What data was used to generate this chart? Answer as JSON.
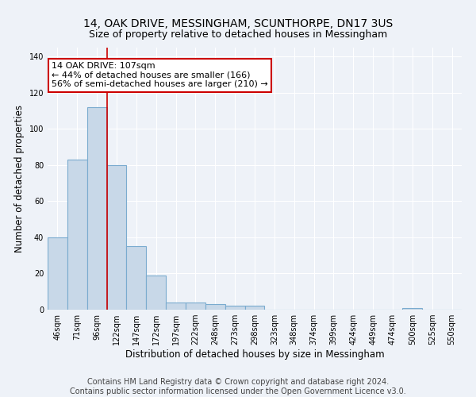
{
  "title": "14, OAK DRIVE, MESSINGHAM, SCUNTHORPE, DN17 3US",
  "subtitle": "Size of property relative to detached houses in Messingham",
  "xlabel": "Distribution of detached houses by size in Messingham",
  "ylabel": "Number of detached properties",
  "footer_line1": "Contains HM Land Registry data © Crown copyright and database right 2024.",
  "footer_line2": "Contains public sector information licensed under the Open Government Licence v3.0.",
  "bin_labels": [
    "46sqm",
    "71sqm",
    "96sqm",
    "122sqm",
    "147sqm",
    "172sqm",
    "197sqm",
    "222sqm",
    "248sqm",
    "273sqm",
    "298sqm",
    "323sqm",
    "348sqm",
    "374sqm",
    "399sqm",
    "424sqm",
    "449sqm",
    "474sqm",
    "500sqm",
    "525sqm",
    "550sqm"
  ],
  "bar_heights": [
    40,
    83,
    112,
    80,
    35,
    19,
    4,
    4,
    3,
    2,
    2,
    0,
    0,
    0,
    0,
    0,
    0,
    0,
    1,
    0,
    0
  ],
  "bar_color": "#c8d8e8",
  "bar_edge_color": "#7aabcf",
  "background_color": "#eef2f8",
  "grid_color": "#ffffff",
  "annotation_line1": "14 OAK DRIVE: 107sqm",
  "annotation_line2": "← 44% of detached houses are smaller (166)",
  "annotation_line3": "56% of semi-detached houses are larger (210) →",
  "annotation_box_color": "#ffffff",
  "annotation_box_edge_color": "#cc0000",
  "red_line_x": 2.5,
  "ylim": [
    0,
    145
  ],
  "yticks": [
    0,
    20,
    40,
    60,
    80,
    100,
    120,
    140
  ],
  "title_fontsize": 10,
  "subtitle_fontsize": 9,
  "axis_label_fontsize": 8.5,
  "tick_fontsize": 7,
  "annotation_fontsize": 8,
  "footer_fontsize": 7
}
